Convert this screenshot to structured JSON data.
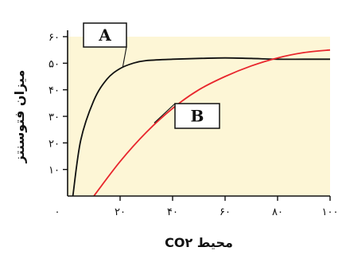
{
  "chart_data": {
    "type": "line",
    "xlabel": "CO۲ محیط",
    "ylabel": "میزان فتوسنتز",
    "xlim": [
      0,
      100
    ],
    "ylim": [
      0,
      60
    ],
    "x_tick_labels": [
      "۰",
      "۲۰",
      "۴۰",
      "۶۰",
      "۸۰",
      "۱۰۰"
    ],
    "y_tick_labels": [
      "۱۰",
      "۲۰",
      "۳۰",
      "۴۰",
      "۵۰",
      "۶۰"
    ],
    "grid": false,
    "background_color": "#fdf6d6",
    "series": [
      {
        "name": "A",
        "color": "#111111",
        "x": [
          2,
          5,
          10,
          15,
          20,
          25,
          30,
          40,
          50,
          60,
          70,
          80,
          90,
          100
        ],
        "y": [
          0,
          21,
          36,
          44,
          48,
          50,
          51,
          51.5,
          51.8,
          52,
          51.8,
          51.5,
          51.5,
          51.5
        ]
      },
      {
        "name": "B",
        "color": "#e8262d",
        "x": [
          10,
          20,
          30,
          40,
          50,
          60,
          70,
          80,
          90,
          100
        ],
        "y": [
          0,
          13,
          24,
          33,
          40,
          45,
          49,
          52,
          54,
          55
        ]
      }
    ]
  }
}
